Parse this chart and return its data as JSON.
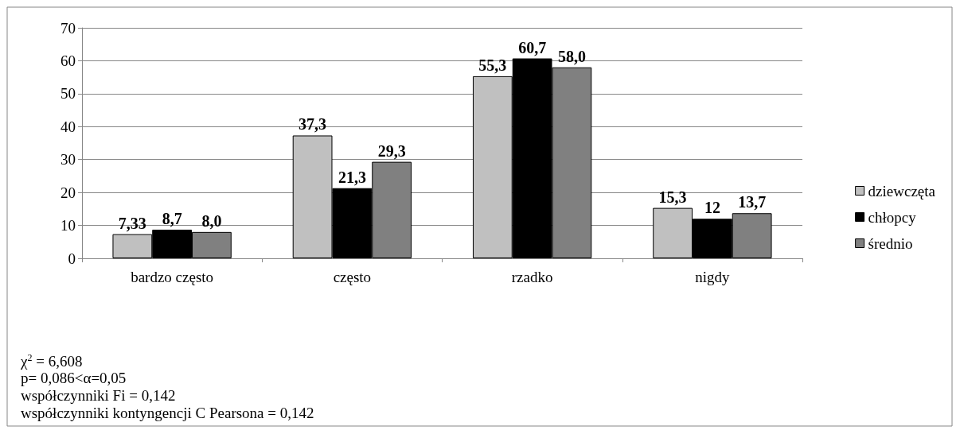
{
  "chart_data": {
    "type": "bar",
    "categories": [
      "bardzo często",
      "często",
      "rzadko",
      "nigdy"
    ],
    "series": [
      {
        "name": "dziewczęta",
        "color": "#c0c0c0",
        "values": [
          7.33,
          37.3,
          55.3,
          15.3
        ],
        "value_labels": [
          "7,33",
          "37,3",
          "55,3",
          "15,3"
        ]
      },
      {
        "name": "chłopcy",
        "color": "#000000",
        "values": [
          8.7,
          21.3,
          60.7,
          12
        ],
        "value_labels": [
          "8,7",
          "21,3",
          "60,7",
          "12"
        ]
      },
      {
        "name": "średnio",
        "color": "#808080",
        "values": [
          8.0,
          29.3,
          58.0,
          13.7
        ],
        "value_labels": [
          "8,0",
          "29,3",
          "58,0",
          "13,7"
        ]
      }
    ],
    "ylim": [
      0,
      70
    ],
    "yticks": [
      0,
      10,
      20,
      30,
      40,
      50,
      60,
      70
    ],
    "grid": "y",
    "legend": "right",
    "annotations": [
      "χ$^{2}$ = 6,608",
      "p= 0,086<α=0,05",
      "współczynniki Fi = 0,142",
      "współczynniki kontyngencji C Pearsona = 0,142"
    ]
  }
}
